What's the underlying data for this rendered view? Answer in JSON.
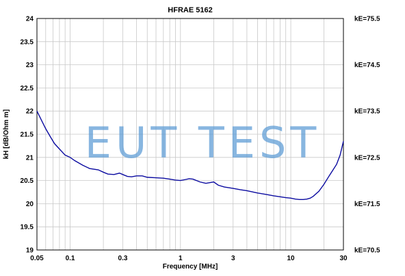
{
  "chart_data": {
    "type": "line",
    "title": "HFRAE 5162",
    "xlabel": "Frequency [MHz]",
    "ylabel": "kH [dB/Ohm m]",
    "xscale": "log",
    "xlim": [
      0.05,
      30
    ],
    "ylim": [
      19,
      24
    ],
    "grid": true,
    "x_tick_labels": [
      {
        "value": 0.05,
        "label": "0.05"
      },
      {
        "value": 0.1,
        "label": "0.1"
      },
      {
        "value": 0.3,
        "label": "0.3"
      },
      {
        "value": 1,
        "label": "1"
      },
      {
        "value": 3,
        "label": "3"
      },
      {
        "value": 10,
        "label": "10"
      },
      {
        "value": 30,
        "label": "30"
      }
    ],
    "y_ticks": [
      {
        "value": 19,
        "label": "19"
      },
      {
        "value": 19.5,
        "label": "19.5"
      },
      {
        "value": 20,
        "label": "20"
      },
      {
        "value": 20.5,
        "label": "20.5"
      },
      {
        "value": 21,
        "label": "21"
      },
      {
        "value": 21.5,
        "label": "21.5"
      },
      {
        "value": 22,
        "label": "22"
      },
      {
        "value": 22.5,
        "label": "22.5"
      },
      {
        "value": 23,
        "label": "23"
      },
      {
        "value": 23.5,
        "label": "23.5"
      },
      {
        "value": 24,
        "label": "24"
      }
    ],
    "right_axis_labels": [
      {
        "value": 24,
        "label": "kE=75.5"
      },
      {
        "value": 23,
        "label": "kE=74.5"
      },
      {
        "value": 22,
        "label": "kE=73.5"
      },
      {
        "value": 21,
        "label": "kE=72.5"
      },
      {
        "value": 20,
        "label": "kE=71.5"
      },
      {
        "value": 19,
        "label": "kE=70.5"
      }
    ],
    "series": [
      {
        "color": "#0a0aa0",
        "x": [
          0.05,
          0.055,
          0.06,
          0.066,
          0.072,
          0.08,
          0.09,
          0.1,
          0.11,
          0.13,
          0.15,
          0.18,
          0.2,
          0.22,
          0.25,
          0.28,
          0.3,
          0.33,
          0.36,
          0.4,
          0.45,
          0.5,
          0.6,
          0.7,
          0.8,
          0.9,
          1.0,
          1.1,
          1.2,
          1.3,
          1.5,
          1.7,
          1.9,
          2.0,
          2.2,
          2.5,
          3.0,
          3.5,
          4.0,
          5.0,
          6.0,
          7.0,
          8.0,
          9.0,
          10.0,
          11.0,
          12.0,
          13.0,
          14.0,
          15.0,
          16.0,
          18.0,
          20.0,
          22.0,
          24.0,
          26.0,
          28.0,
          30.0
        ],
        "values": [
          22.0,
          21.8,
          21.62,
          21.45,
          21.3,
          21.18,
          21.05,
          21.0,
          20.93,
          20.83,
          20.76,
          20.73,
          20.68,
          20.64,
          20.63,
          20.66,
          20.63,
          20.59,
          20.58,
          20.6,
          20.6,
          20.57,
          20.56,
          20.55,
          20.53,
          20.51,
          20.5,
          20.52,
          20.54,
          20.53,
          20.47,
          20.44,
          20.46,
          20.47,
          20.4,
          20.36,
          20.33,
          20.3,
          20.28,
          20.23,
          20.2,
          20.17,
          20.15,
          20.13,
          20.12,
          20.1,
          20.09,
          20.09,
          20.1,
          20.12,
          20.16,
          20.27,
          20.42,
          20.58,
          20.72,
          20.85,
          21.05,
          21.35
        ]
      }
    ]
  },
  "watermark": "EUT TEST"
}
